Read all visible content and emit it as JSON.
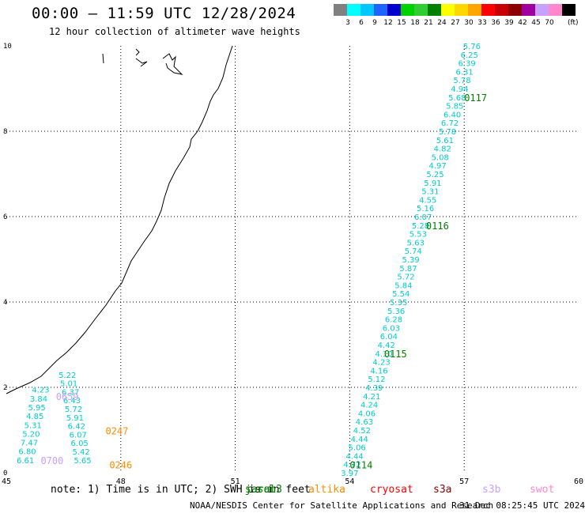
{
  "header": {
    "title": "00:00 – 11:59 UTC 12/28/2024",
    "subtitle": "12 hour collection of altimeter wave heights"
  },
  "legend": {
    "unit": "(ft)",
    "bins": [
      {
        "label": "",
        "color": "#808080"
      },
      {
        "label": "3",
        "color": "#00ffff"
      },
      {
        "label": "6",
        "color": "#00c8ff"
      },
      {
        "label": "9",
        "color": "#1e64ff"
      },
      {
        "label": "12",
        "color": "#0000cd"
      },
      {
        "label": "15",
        "color": "#00d200"
      },
      {
        "label": "18",
        "color": "#32cd32"
      },
      {
        "label": "21",
        "color": "#008000"
      },
      {
        "label": "24",
        "color": "#ffff00"
      },
      {
        "label": "27",
        "color": "#ffd700"
      },
      {
        "label": "30",
        "color": "#ffa500"
      },
      {
        "label": "33",
        "color": "#ff0000"
      },
      {
        "label": "36",
        "color": "#c80000"
      },
      {
        "label": "39",
        "color": "#8b0000"
      },
      {
        "label": "42",
        "color": "#a000a0"
      },
      {
        "label": "45",
        "color": "#c8a0ff"
      },
      {
        "label": "70",
        "color": "#ff88cc"
      },
      {
        "label": "",
        "color": "#000000"
      }
    ]
  },
  "map": {
    "lon_ticks": [
      "45",
      "48",
      "51",
      "54",
      "57",
      "60"
    ],
    "lat_ticks": [
      "0",
      "2",
      "4",
      "6",
      "8",
      "10"
    ],
    "lon_range": [
      45,
      60
    ],
    "lat_range": [
      0,
      10
    ],
    "grid": "dotted"
  },
  "tracks": [
    {
      "id": "track-0117",
      "time_label": "0117",
      "time_color": "#008000",
      "text_color": "#00cccc",
      "values": [
        "5.76",
        "6.25",
        "6.39",
        "6.31",
        "5.78",
        "4.94",
        "5.68",
        "5.85",
        "6.40",
        "6.72",
        "5.78",
        "5.61",
        "4.82",
        "5.08",
        "4.97",
        "5.25",
        "5.91",
        "5.31",
        "4.55",
        "5.16",
        "6.07",
        "5.28",
        "5.53",
        "5.63",
        "5.74",
        "5.39",
        "5.87",
        "5.72",
        "5.84",
        "5.54",
        "5.35",
        "5.36",
        "6.28",
        "6.03",
        "6.04",
        "4.42",
        "4.10",
        "4.23",
        "4.16",
        "5.12",
        "4.39",
        "4.21",
        "4.24",
        "4.06",
        "4.63",
        "4.52",
        "4.44",
        "5.06",
        "4.44",
        "4.72",
        "3.97"
      ],
      "start": [
        57.2,
        10.0
      ],
      "end": [
        54.0,
        0.0
      ]
    },
    {
      "id": "track-west-a",
      "text_color": "#00cccc",
      "values": [
        "4.23",
        "3.84",
        "5.95",
        "4.85",
        "5.31",
        "5.20",
        "7.47",
        "6.80",
        "6.61"
      ],
      "start": [
        45.9,
        1.95
      ],
      "end": [
        45.5,
        0.3
      ]
    },
    {
      "id": "track-west-b",
      "text_color": "#00cccc",
      "values": [
        "5.22",
        "5.01",
        "6.37",
        "6.43",
        "5.72",
        "5.91",
        "6.42",
        "6.07",
        "6.05",
        "5.42",
        "5.65"
      ],
      "start": [
        46.6,
        2.3
      ],
      "end": [
        47.0,
        0.3
      ]
    }
  ],
  "time_labels": [
    {
      "text": "0117",
      "color": "#008000",
      "lon": 57.0,
      "lat": 8.7
    },
    {
      "text": "0116",
      "color": "#008000",
      "lon": 56.0,
      "lat": 5.7
    },
    {
      "text": "0115",
      "color": "#008000",
      "lon": 54.9,
      "lat": 2.7
    },
    {
      "text": "0114",
      "color": "#008000",
      "lon": 54.0,
      "lat": 0.1
    },
    {
      "text": "0247",
      "color": "#ff8c00",
      "lon": 47.6,
      "lat": 0.9
    },
    {
      "text": "0246",
      "color": "#ff8c00",
      "lon": 47.7,
      "lat": 0.1
    },
    {
      "text": "0659",
      "color": "#c8a0ff",
      "lon": 46.3,
      "lat": 1.7
    },
    {
      "text": "0700",
      "color": "#c8a0ff",
      "lon": 45.9,
      "lat": 0.2
    }
  ],
  "footer": {
    "note": "note: 1) Time is in UTC; 2) SWH is in feet",
    "satellites": [
      "jason3",
      "saral",
      "altika",
      "cryosat",
      "s3a",
      "s3b",
      "swot"
    ],
    "credit": "NOAA/NESDIS Center for Satellite Applications and Research",
    "generated": "31 Dec 08:25:45 UTC 2024"
  }
}
